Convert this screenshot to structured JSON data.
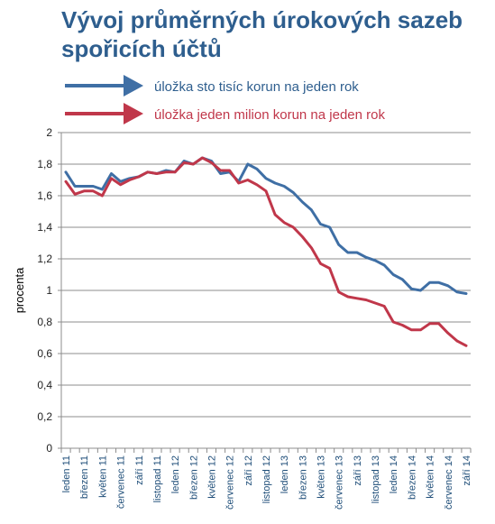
{
  "chart_data": {
    "type": "line",
    "title": "Vývoj průměrných úrokových sazeb spořicích účtů",
    "ylabel": "procenta",
    "xlabel": "",
    "ylim": [
      0,
      2
    ],
    "yticks": [
      "0",
      "0,2",
      "0,4",
      "0,6",
      "0,8",
      "1",
      "1,2",
      "1,4",
      "1,6",
      "1,8",
      "2"
    ],
    "grid": true,
    "legend_position": "top",
    "x": [
      "leden 11",
      "únor 11",
      "březen 11",
      "duben 11",
      "květen 11",
      "červen 11",
      "červenec 11",
      "srpen 11",
      "září 11",
      "říjen 11",
      "listopad 11",
      "prosinec 11",
      "leden 12",
      "únor 12",
      "březen 12",
      "duben 12",
      "květen 12",
      "červen 12",
      "červenec 12",
      "srpen 12",
      "září 12",
      "říjen 12",
      "listopad 12",
      "prosinec 12",
      "leden 13",
      "únor 13",
      "březen 13",
      "duben 13",
      "květen 13",
      "červen 13",
      "červenec 13",
      "srpen 13",
      "září 13",
      "říjen 13",
      "listopad 13",
      "prosinec 13",
      "leden 14",
      "únor 14",
      "březen 14",
      "duben 14",
      "květen 14",
      "červen 14",
      "červenec 14",
      "srpen 14",
      "září 14"
    ],
    "xtick_labels": [
      "leden 11",
      "březen 11",
      "květen 11",
      "červenec 11",
      "září 11",
      "listopad 11",
      "leden 12",
      "březen 12",
      "květen 12",
      "červenec 12",
      "září 12",
      "listopad 12",
      "leden 13",
      "březen 13",
      "květen 13",
      "červenec 13",
      "září 13",
      "listopad 13",
      "leden 14",
      "březen 14",
      "květen 14",
      "červenec 14",
      "září 14"
    ],
    "series": [
      {
        "name": "úložka sto tisíc korun na jeden rok",
        "color": "#3f6fa5",
        "values": [
          1.75,
          1.66,
          1.66,
          1.66,
          1.64,
          1.74,
          1.69,
          1.71,
          1.72,
          1.75,
          1.74,
          1.76,
          1.75,
          1.82,
          1.8,
          1.84,
          1.82,
          1.74,
          1.75,
          1.69,
          1.8,
          1.77,
          1.71,
          1.68,
          1.66,
          1.62,
          1.56,
          1.51,
          1.42,
          1.4,
          1.29,
          1.24,
          1.24,
          1.21,
          1.19,
          1.16,
          1.1,
          1.07,
          1.01,
          1.0,
          1.05,
          1.05,
          1.03,
          0.99,
          0.98
        ]
      },
      {
        "name": "úložka jeden milion korun na jeden rok",
        "color": "#c0374a",
        "values": [
          1.69,
          1.61,
          1.63,
          1.63,
          1.6,
          1.71,
          1.67,
          1.7,
          1.72,
          1.75,
          1.74,
          1.75,
          1.75,
          1.81,
          1.8,
          1.84,
          1.81,
          1.76,
          1.76,
          1.68,
          1.7,
          1.67,
          1.63,
          1.48,
          1.43,
          1.4,
          1.34,
          1.27,
          1.17,
          1.14,
          0.99,
          0.96,
          0.95,
          0.94,
          0.92,
          0.9,
          0.8,
          0.78,
          0.75,
          0.75,
          0.79,
          0.79,
          0.73,
          0.68,
          0.65
        ]
      }
    ]
  }
}
